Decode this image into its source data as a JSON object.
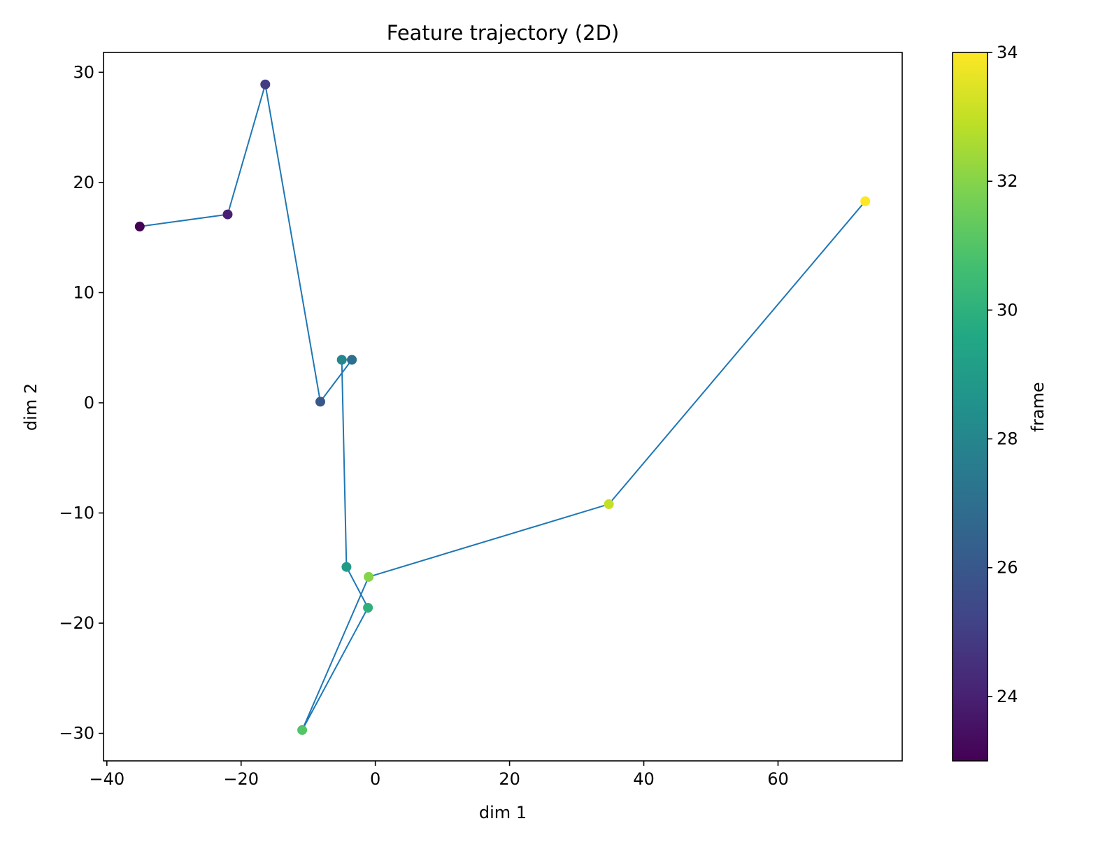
{
  "chart_data": {
    "type": "scatter",
    "title": "Feature trajectory (2D)",
    "xlabel": "dim 1",
    "ylabel": "dim 2",
    "xlim": [
      -40.5,
      78.5
    ],
    "ylim": [
      -32.5,
      31.8
    ],
    "xticks": [
      -40,
      -20,
      0,
      20,
      40,
      60
    ],
    "yticks": [
      -30,
      -20,
      -10,
      0,
      10,
      20,
      30
    ],
    "xtick_labels": [
      "−40",
      "−20",
      "0",
      "20",
      "40",
      "60"
    ],
    "ytick_labels": [
      "−30",
      "−20",
      "−10",
      "0",
      "10",
      "20",
      "30"
    ],
    "grid": false,
    "line_color": "#1f77b4",
    "colormap": "viridis",
    "colorbar": {
      "label": "frame",
      "range": [
        23,
        34
      ],
      "ticks": [
        24,
        26,
        28,
        30,
        32,
        34
      ],
      "tick_labels": [
        "24",
        "26",
        "28",
        "30",
        "32",
        "34"
      ]
    },
    "points": [
      {
        "frame": 23,
        "x": -35.1,
        "y": 16.0
      },
      {
        "frame": 24,
        "x": -22.0,
        "y": 17.1
      },
      {
        "frame": 25,
        "x": -16.4,
        "y": 28.9
      },
      {
        "frame": 26,
        "x": -8.2,
        "y": 0.1
      },
      {
        "frame": 27,
        "x": -3.5,
        "y": 3.9
      },
      {
        "frame": 28,
        "x": -5.0,
        "y": 3.9
      },
      {
        "frame": 29,
        "x": -4.3,
        "y": -14.9
      },
      {
        "frame": 30,
        "x": -1.1,
        "y": -18.6
      },
      {
        "frame": 31,
        "x": -10.9,
        "y": -29.7
      },
      {
        "frame": 32,
        "x": -1.0,
        "y": -15.8
      },
      {
        "frame": 33,
        "x": 34.8,
        "y": -9.2
      },
      {
        "frame": 34,
        "x": 73.0,
        "y": 18.3
      }
    ]
  }
}
